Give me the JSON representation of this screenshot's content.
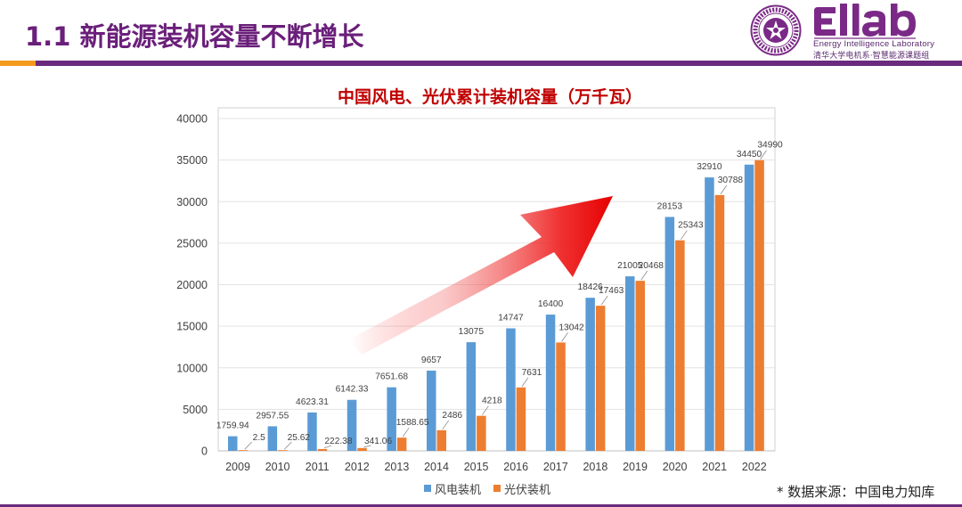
{
  "header": {
    "title": "1.1 新能源装机容量不断增长",
    "logo": {
      "wordmark": "EIlab",
      "subtitle_en": "Energy Intelligence Laboratory",
      "subtitle_zh": "清华大学电机系·智慧能源课题组"
    }
  },
  "colors": {
    "wind": "#5b9bd5",
    "solar": "#ed7d31",
    "title_purple": "#6a1f7a",
    "chart_title_red": "#c00000",
    "accent_orange": "#f39a1c"
  },
  "chart_data": {
    "type": "bar",
    "title": "中国风电、光伏累计装机容量（万千瓦）",
    "categories": [
      "2009",
      "2010",
      "2011",
      "2012",
      "2013",
      "2014",
      "2015",
      "2016",
      "2017",
      "2018",
      "2019",
      "2020",
      "2021",
      "2022"
    ],
    "series": [
      {
        "name": "风电装机",
        "values": [
          1759.94,
          2957.55,
          4623.31,
          6142.33,
          7651.68,
          9657,
          13075,
          14747,
          16400,
          18426,
          21005,
          28153,
          32910,
          34450
        ],
        "labels": [
          "1759.94",
          "2957.55",
          "4623.31",
          "6142.33",
          "7651.68",
          "9657",
          "13075",
          "14747",
          "16400",
          "18426",
          "21005",
          "28153",
          "32910",
          "34450"
        ]
      },
      {
        "name": "光伏装机",
        "values": [
          2.5,
          25.62,
          222.38,
          341.06,
          1588.65,
          2486,
          4218,
          7631,
          13042,
          17463,
          20468,
          25343,
          30788,
          34990
        ],
        "labels": [
          "2.5",
          "25.62",
          "222.38",
          "341.06",
          "1588.65",
          "2486",
          "4218",
          "7631",
          "13042",
          "17463",
          "20468",
          "25343",
          "30788",
          "34990"
        ]
      }
    ],
    "ylim": [
      0,
      40000
    ],
    "yticks": [
      "0",
      "5000",
      "10000",
      "15000",
      "20000",
      "25000",
      "30000",
      "35000",
      "40000"
    ],
    "grid": true,
    "legend_position": "bottom",
    "annotation": "rising-trend-arrow"
  },
  "footer": {
    "source": "* 数据来源：中国电力知库"
  }
}
